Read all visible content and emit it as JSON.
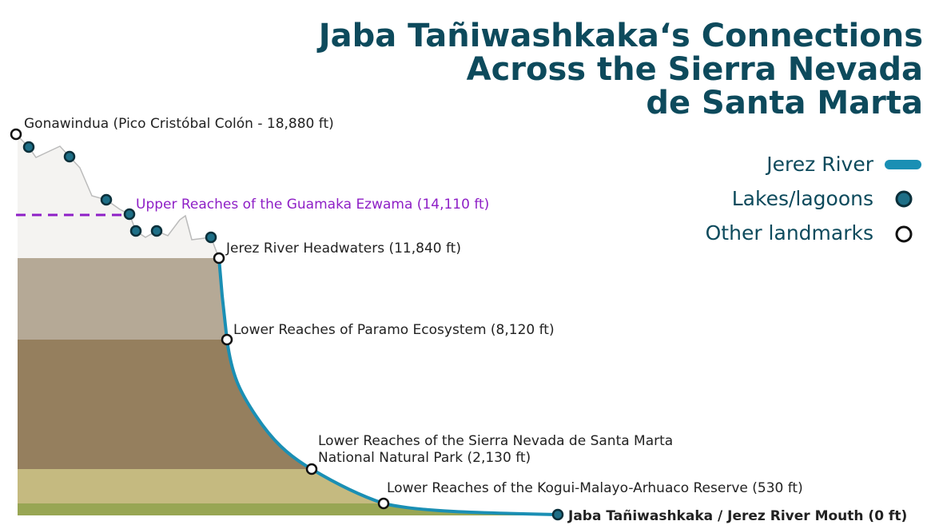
{
  "title": {
    "lines": [
      "Jaba Tañiwashkaka‘s Connections",
      "Across the Sierra Nevada",
      "de Santa Marta"
    ]
  },
  "legend": {
    "river": "Jerez River",
    "lakes": "Lakes/lagoons",
    "landmarks": "Other landmarks"
  },
  "labels": {
    "summit": "Gonawindua (Pico Cristóbal Colón - 18,880 ft)",
    "guamaka": "Upper Reaches of the Guamaka Ezwama (14,110 ft)",
    "headwaters": "Jerez River Headwaters (11,840 ft)",
    "paramo": "Lower Reaches of Paramo Ecosystem (8,120 ft)",
    "park": [
      "Lower Reaches of the Sierra Nevada de Santa Marta",
      "National Natural Park (2,130 ft)"
    ],
    "reserve": "Lower Reaches of the Kogui-Malayo-Arhuaco Reserve (530 ft)",
    "mouth": "Jaba Tañiwashkaka / Jerez River Mouth (0 ft)"
  }
}
